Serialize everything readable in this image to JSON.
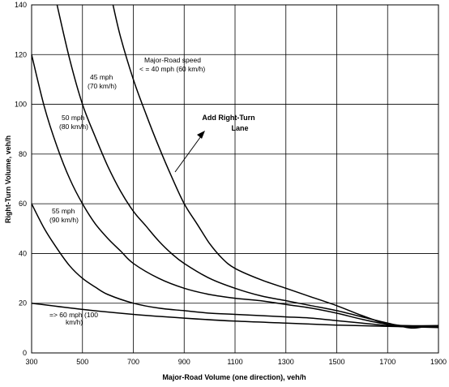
{
  "chart_data": {
    "type": "line",
    "title": "",
    "xlabel": "Major-Road Volume (one direction), veh/h",
    "ylabel": "Right-Turn Volume, veh/h",
    "xlim": [
      300,
      1900
    ],
    "ylim": [
      0,
      140
    ],
    "xticks": [
      300,
      500,
      700,
      900,
      1100,
      1300,
      1500,
      1700,
      1900
    ],
    "yticks": [
      0,
      20,
      40,
      60,
      80,
      100,
      120,
      140
    ],
    "grid": true,
    "legend": "none",
    "series": [
      {
        "name": "Major-Road speed < = 40 mph (60 km/h)",
        "x": [
          620,
          650,
          700,
          750,
          800,
          850,
          900,
          950,
          1000,
          1050,
          1100,
          1200,
          1300,
          1400,
          1500,
          1600,
          1700,
          1760,
          1800,
          1850,
          1900
        ],
        "y": [
          140,
          127,
          110,
          96,
          83,
          71,
          60,
          52,
          44,
          38,
          34,
          29.5,
          26,
          22.5,
          19,
          15,
          11.5,
          10.5,
          10,
          10.5,
          10.3
        ]
      },
      {
        "name": "45 mph (70 km/h)",
        "x": [
          400,
          450,
          500,
          550,
          600,
          650,
          700,
          750,
          800,
          850,
          900,
          1000,
          1100,
          1200,
          1300,
          1400,
          1500,
          1600,
          1700,
          1760,
          1900
        ],
        "y": [
          140,
          118,
          100,
          87,
          75,
          65,
          57,
          51,
          45,
          40,
          36,
          30,
          26,
          23,
          21,
          19,
          17,
          14.5,
          12,
          11,
          11
        ]
      },
      {
        "name": "50 mph (80 km/h)",
        "x": [
          300,
          350,
          400,
          450,
          500,
          550,
          600,
          650,
          700,
          800,
          900,
          1000,
          1100,
          1200,
          1300,
          1400,
          1500,
          1600,
          1700,
          1760,
          1900
        ],
        "y": [
          120,
          99,
          83,
          70,
          60,
          52,
          46,
          41,
          36,
          30,
          26,
          23.5,
          22,
          21,
          19.5,
          18,
          16,
          13.5,
          11.5,
          11,
          10.5
        ]
      },
      {
        "name": "55 mph (90 km/h)",
        "x": [
          300,
          350,
          400,
          450,
          500,
          550,
          600,
          700,
          800,
          900,
          1000,
          1100,
          1200,
          1300,
          1400,
          1500,
          1600,
          1700,
          1760,
          1900
        ],
        "y": [
          60,
          50,
          42,
          35,
          30,
          26.5,
          23.5,
          20,
          18,
          17,
          16,
          15.5,
          15,
          14.5,
          14,
          13,
          12,
          11,
          10.8,
          10.5
        ]
      },
      {
        "name": "=> 60 mph (100 km/h)",
        "x": [
          300,
          500,
          700,
          900,
          1100,
          1300,
          1500,
          1700,
          1900
        ],
        "y": [
          20,
          17.5,
          15.5,
          14,
          12.8,
          12,
          11.2,
          10.7,
          10.2
        ]
      }
    ],
    "annotations": {
      "add_lane": [
        "Add Right-Turn",
        "Lane"
      ],
      "speed40": [
        "Major-Road speed",
        "< = 40 mph (60 km/h)"
      ],
      "speed45": [
        "45 mph",
        "(70 km/h)"
      ],
      "speed50": [
        "50 mph",
        "(80 km/h)"
      ],
      "speed55": [
        "55 mph",
        "(90 km/h)"
      ],
      "speed60": [
        "=> 60 mph (100",
        "km/h)"
      ]
    }
  }
}
